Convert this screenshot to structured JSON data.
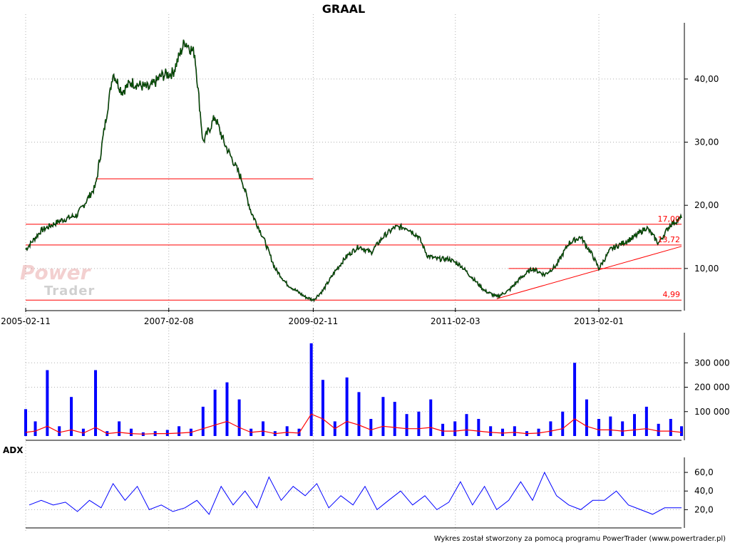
{
  "title": "GRAAL",
  "adx_label": "ADX",
  "footer": "Wykres został stworzony za pomocą programu PowerTrader (www.powertrader.pl)",
  "watermark": {
    "line1": "Power",
    "line2": "Trader"
  },
  "colors": {
    "price": "#006400",
    "price_dark": "#000000",
    "level_lines": "#ff0000",
    "volume_bars": "#0000ff",
    "volume_avg": "#ff0000",
    "adx_line": "#0000ff",
    "grid": "#b0b0b0",
    "level_label": "#ff0000"
  },
  "chart_data": [
    {
      "type": "line",
      "panel": "price",
      "title": "GRAAL",
      "x_tick_labels": [
        "2005-02-11",
        "2007-02-08",
        "2009-02-11",
        "2011-02-03",
        "2013-02-01"
      ],
      "x_range": [
        "2005-02-11",
        "2014-03-28"
      ],
      "y_tick_labels": [
        "10,00",
        "20,00",
        "30,00",
        "40,00"
      ],
      "ylim": [
        4.0,
        48.0
      ],
      "grid": true,
      "series": [
        {
          "x": [
            "2005-02-11",
            "2005-05-01",
            "2005-08-01",
            "2005-11-01",
            "2006-02-01",
            "2006-05-01",
            "2006-06-15",
            "2006-08-01",
            "2006-09-15",
            "2006-11-01",
            "2007-01-01",
            "2007-03-01",
            "2007-05-01",
            "2007-06-20",
            "2007-08-01",
            "2007-09-01",
            "2007-10-01",
            "2007-11-15",
            "2008-01-01",
            "2008-02-15",
            "2008-04-01",
            "2008-06-01",
            "2008-08-01",
            "2008-10-01",
            "2008-11-15",
            "2009-01-01",
            "2009-02-11",
            "2009-04-01",
            "2009-06-01",
            "2009-08-01",
            "2009-10-01",
            "2009-12-01",
            "2010-02-01",
            "2010-04-01",
            "2010-06-01",
            "2010-08-01",
            "2010-09-15",
            "2010-11-01",
            "2011-01-01",
            "2011-03-01",
            "2011-05-01",
            "2011-07-01",
            "2011-09-01",
            "2011-11-01",
            "2012-01-01",
            "2012-03-01",
            "2012-05-01",
            "2012-07-01",
            "2012-09-01",
            "2012-11-01",
            "2013-01-01",
            "2013-02-01",
            "2013-04-01",
            "2013-06-01",
            "2013-08-01",
            "2013-10-01",
            "2013-12-01",
            "2014-02-01",
            "2014-03-28"
          ],
          "y": [
            13.0,
            16.0,
            17.5,
            18.5,
            23.0,
            41.0,
            38.0,
            39.5,
            39.0,
            38.5,
            40.5,
            41.0,
            46.0,
            44.0,
            30.0,
            32.0,
            34.0,
            30.0,
            27.0,
            24.0,
            19.0,
            15.0,
            10.0,
            7.5,
            6.5,
            5.5,
            5.0,
            6.5,
            9.5,
            12.0,
            13.5,
            12.5,
            15.0,
            16.5,
            16.5,
            15.0,
            12.0,
            11.5,
            11.5,
            10.5,
            8.5,
            6.5,
            5.5,
            6.5,
            8.5,
            10.0,
            9.0,
            10.5,
            14.0,
            15.0,
            12.0,
            10.0,
            13.0,
            14.0,
            15.0,
            16.5,
            14.0,
            17.0,
            18.0
          ]
        }
      ],
      "horizontal_levels": [
        {
          "y": 17.0,
          "label": "17,00",
          "x_start": "2005-02-11",
          "x_end": "2014-03-28"
        },
        {
          "y": 13.72,
          "label": "13,72",
          "x_start": "2005-02-11",
          "x_end": "2014-03-28"
        },
        {
          "y": 4.99,
          "label": "4,99",
          "x_start": "2005-02-11",
          "x_end": "2014-03-28"
        },
        {
          "y": 24.2,
          "label": "",
          "x_start": "2006-02-01",
          "x_end": "2009-02-11"
        },
        {
          "y": 10.0,
          "label": "",
          "x_start": "2011-11-01",
          "x_end": "2014-03-28"
        }
      ],
      "trendline": {
        "x_start": "2011-09-01",
        "y_start": 5.2,
        "x_end": "2014-03-28",
        "y_end": 13.5
      }
    },
    {
      "type": "bar",
      "panel": "volume",
      "y_tick_labels": [
        "100 000",
        "200 000",
        "300 000"
      ],
      "ylim": [
        0,
        400000
      ],
      "grid": true,
      "x": [
        "2005-02-11",
        "2005-04-01",
        "2005-06-01",
        "2005-08-01",
        "2005-10-01",
        "2005-12-01",
        "2006-02-01",
        "2006-04-01",
        "2006-06-01",
        "2006-08-01",
        "2006-10-01",
        "2006-12-01",
        "2007-02-01",
        "2007-04-01",
        "2007-06-01",
        "2007-08-01",
        "2007-10-01",
        "2007-12-01",
        "2008-02-01",
        "2008-04-01",
        "2008-06-01",
        "2008-08-01",
        "2008-10-01",
        "2008-12-01",
        "2009-02-01",
        "2009-04-01",
        "2009-06-01",
        "2009-08-01",
        "2009-10-01",
        "2009-12-01",
        "2010-02-01",
        "2010-04-01",
        "2010-06-01",
        "2010-08-01",
        "2010-10-01",
        "2010-12-01",
        "2011-02-01",
        "2011-04-01",
        "2011-06-01",
        "2011-08-01",
        "2011-10-01",
        "2011-12-01",
        "2012-02-01",
        "2012-04-01",
        "2012-06-01",
        "2012-08-01",
        "2012-10-01",
        "2012-12-01",
        "2013-02-01",
        "2013-04-01",
        "2013-06-01",
        "2013-08-01",
        "2013-10-01",
        "2013-12-01",
        "2014-02-01",
        "2014-03-28"
      ],
      "series": [
        {
          "values": [
            110000,
            60000,
            270000,
            40000,
            160000,
            30000,
            270000,
            20000,
            60000,
            30000,
            15000,
            20000,
            25000,
            40000,
            30000,
            120000,
            190000,
            220000,
            150000,
            30000,
            60000,
            20000,
            40000,
            30000,
            380000,
            230000,
            60000,
            240000,
            180000,
            70000,
            160000,
            140000,
            90000,
            100000,
            150000,
            50000,
            60000,
            90000,
            70000,
            40000,
            30000,
            40000,
            20000,
            30000,
            60000,
            100000,
            300000,
            150000,
            70000,
            80000,
            60000,
            90000,
            120000,
            50000,
            70000,
            40000
          ]
        },
        {
          "values": [
            15000,
            20000,
            40000,
            15000,
            25000,
            12000,
            35000,
            10000,
            15000,
            10000,
            8000,
            10000,
            10000,
            12000,
            15000,
            30000,
            45000,
            60000,
            35000,
            15000,
            20000,
            10000,
            15000,
            12000,
            90000,
            70000,
            30000,
            60000,
            45000,
            25000,
            40000,
            35000,
            30000,
            30000,
            35000,
            20000,
            20000,
            25000,
            20000,
            15000,
            12000,
            15000,
            10000,
            12000,
            20000,
            30000,
            70000,
            40000,
            25000,
            25000,
            20000,
            25000,
            30000,
            20000,
            20000,
            15000
          ]
        }
      ]
    },
    {
      "type": "line",
      "panel": "adx",
      "title": "ADX",
      "y_tick_labels": [
        "20,0",
        "40,0",
        "60,0"
      ],
      "ylim": [
        5,
        70
      ],
      "grid": true,
      "x": [
        "2005-03-01",
        "2005-05-01",
        "2005-07-01",
        "2005-09-01",
        "2005-11-01",
        "2006-01-01",
        "2006-03-01",
        "2006-05-01",
        "2006-07-01",
        "2006-09-01",
        "2006-11-01",
        "2007-01-01",
        "2007-03-01",
        "2007-05-01",
        "2007-07-01",
        "2007-09-01",
        "2007-11-01",
        "2008-01-01",
        "2008-03-01",
        "2008-05-01",
        "2008-07-01",
        "2008-09-01",
        "2008-11-01",
        "2009-01-01",
        "2009-03-01",
        "2009-05-01",
        "2009-07-01",
        "2009-09-01",
        "2009-11-01",
        "2010-01-01",
        "2010-03-01",
        "2010-05-01",
        "2010-07-01",
        "2010-09-01",
        "2010-11-01",
        "2011-01-01",
        "2011-03-01",
        "2011-05-01",
        "2011-07-01",
        "2011-09-01",
        "2011-11-01",
        "2012-01-01",
        "2012-03-01",
        "2012-05-01",
        "2012-07-01",
        "2012-09-01",
        "2012-11-01",
        "2013-01-01",
        "2013-03-01",
        "2013-05-01",
        "2013-07-01",
        "2013-09-01",
        "2013-11-01",
        "2014-01-01",
        "2014-03-28"
      ],
      "series": [
        {
          "values": [
            25,
            30,
            25,
            28,
            18,
            30,
            22,
            48,
            30,
            45,
            20,
            25,
            18,
            22,
            30,
            15,
            45,
            25,
            40,
            22,
            55,
            30,
            45,
            35,
            48,
            22,
            35,
            25,
            45,
            20,
            30,
            40,
            25,
            35,
            20,
            28,
            50,
            25,
            45,
            20,
            30,
            50,
            30,
            60,
            35,
            25,
            20,
            30,
            30,
            40,
            25,
            20,
            15,
            22,
            22
          ]
        }
      ]
    }
  ]
}
